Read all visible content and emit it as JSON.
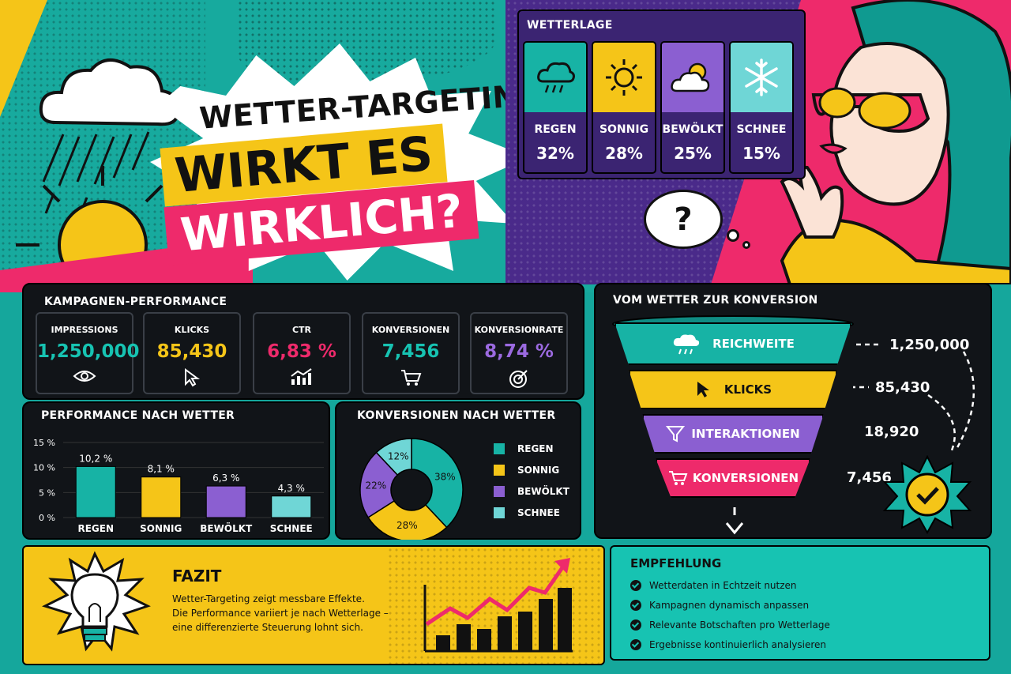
{
  "title": {
    "line1": "WETTER-TARGETING:",
    "line2": "WIRKT ES",
    "line3": "WIRKLICH?"
  },
  "weather": {
    "heading": "WETTERLAGE",
    "cards": [
      {
        "label": "REGEN",
        "value": "32%",
        "icon": "rain-cloud-icon",
        "color": "#17b3a5"
      },
      {
        "label": "SONNIG",
        "value": "28%",
        "icon": "sun-icon",
        "color": "#f5c518"
      },
      {
        "label": "BEWÖLKT",
        "value": "25%",
        "icon": "partly-cloudy-icon",
        "color": "#8b5fd1"
      },
      {
        "label": "SCHNEE",
        "value": "15%",
        "icon": "snowflake-icon",
        "color": "#6fd6d6"
      }
    ]
  },
  "kpis": {
    "heading": "KAMPAGNEN-PERFORMANCE",
    "items": [
      {
        "label": "IMPRESSIONS",
        "value": "1,250,000",
        "icon": "eye-icon",
        "color": "#17c3b2"
      },
      {
        "label": "KLICKS",
        "value": "85,430",
        "icon": "cursor-icon",
        "color": "#f5c518"
      },
      {
        "label": "CTR",
        "value": "6,83 %",
        "icon": "growth-chart-icon",
        "color": "#ee2a6b"
      },
      {
        "label": "KONVERSIONEN",
        "value": "7,456",
        "icon": "cart-icon",
        "color": "#17c3b2"
      },
      {
        "label": "KONVERSIONRATE",
        "value": "8,74 %",
        "icon": "target-icon",
        "color": "#9b6ae0"
      }
    ]
  },
  "funnel": {
    "heading": "VOM WETTER ZUR KONVERSION",
    "stages": [
      {
        "label": "REICHWEITE",
        "value": "1,250,000",
        "icon": "rain-cloud-icon",
        "color": "#17b3a5"
      },
      {
        "label": "KLICKS",
        "value": "85,430",
        "icon": "cursor-icon",
        "color": "#f5c518"
      },
      {
        "label": "INTERAKTIONEN",
        "value": "18,920",
        "icon": "funnel-icon",
        "color": "#8b5fd1"
      },
      {
        "label": "KONVERSIONEN",
        "value": "7,456",
        "icon": "cart-icon",
        "color": "#ee2a6b"
      }
    ]
  },
  "chart_data": [
    {
      "type": "bar",
      "title": "PERFORMANCE NACH WETTER",
      "categories": [
        "REGEN",
        "SONNIG",
        "BEWÖLKT",
        "SCHNEE"
      ],
      "values": [
        10.2,
        8.1,
        6.3,
        4.3
      ],
      "value_labels": [
        "10,2 %",
        "8,1 %",
        "6,3 %",
        "4,3 %"
      ],
      "colors": [
        "#17b3a5",
        "#f5c518",
        "#8b5fd1",
        "#6fd6d6"
      ],
      "ylim": [
        0,
        15
      ],
      "yticks": [
        "0 %",
        "5 %",
        "10 %",
        "15 %"
      ]
    },
    {
      "type": "pie",
      "title": "KONVERSIONEN NACH WETTER",
      "categories": [
        "REGEN",
        "SONNIG",
        "BEWÖLKT",
        "SCHNEE"
      ],
      "values": [
        38,
        28,
        22,
        12
      ],
      "value_labels": [
        "38%",
        "28%",
        "22%",
        "12%"
      ],
      "colors": [
        "#17b3a5",
        "#f5c518",
        "#8b5fd1",
        "#6fd6d6"
      ],
      "legend": "right"
    }
  ],
  "fazit": {
    "heading": "FAZIT",
    "lines": [
      "Wetter-Targeting zeigt messbare Effekte.",
      "Die Performance variiert je nach Wetterlage –",
      "eine differenzierte Steuerung lohnt sich."
    ]
  },
  "recommend": {
    "heading": "EMPFEHLUNG",
    "items": [
      "Wetterdaten in Echtzeit nutzen",
      "Kampagnen dynamisch anpassen",
      "Relevante Botschaften pro Wetterlage",
      "Ergebnisse kontinuierlich analysieren"
    ]
  },
  "thought": "?"
}
